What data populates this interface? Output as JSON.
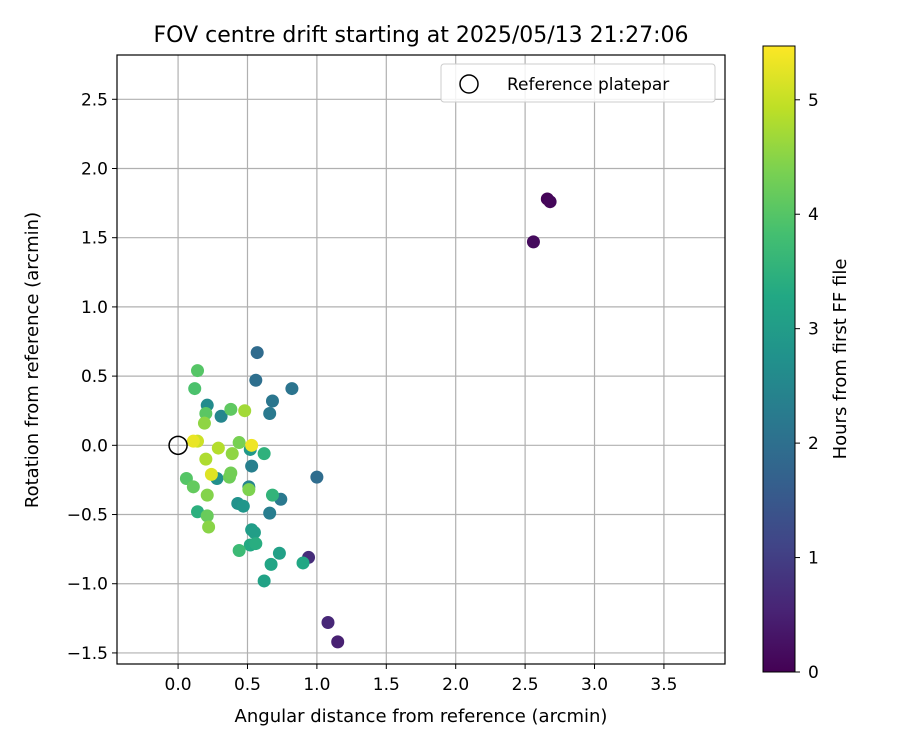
{
  "chart_data": {
    "type": "scatter",
    "title": "FOV centre drift starting at 2025/05/13 21:27:06",
    "xlabel": "Angular distance from reference (arcmin)",
    "ylabel": "Rotation from reference (arcmin)",
    "xlim": [
      -0.44,
      3.94
    ],
    "ylim": [
      -1.58,
      2.82
    ],
    "xticks": [
      0.0,
      0.5,
      1.0,
      1.5,
      2.0,
      2.5,
      3.0,
      3.5
    ],
    "xtick_labels": [
      "0.0",
      "0.5",
      "1.0",
      "1.5",
      "2.0",
      "2.5",
      "3.0",
      "3.5"
    ],
    "yticks": [
      -1.5,
      -1.0,
      -0.5,
      0.0,
      0.5,
      1.0,
      1.5,
      2.0,
      2.5
    ],
    "ytick_labels": [
      "−1.5",
      "−1.0",
      "−0.5",
      "0.0",
      "0.5",
      "1.0",
      "1.5",
      "2.0",
      "2.5"
    ],
    "grid": true,
    "legend": {
      "position": "top-right",
      "entries": [
        {
          "label": "Reference platepar",
          "marker": "open-circle"
        }
      ]
    },
    "reference_point": {
      "x": 0.0,
      "y": 0.0
    },
    "colorbar": {
      "label": "Hours from first FF file",
      "colormap": "viridis",
      "range": [
        0,
        5.47
      ],
      "ticks": [
        0,
        1,
        2,
        3,
        4,
        5
      ],
      "tick_labels": [
        "0",
        "1",
        "2",
        "3",
        "4",
        "5"
      ]
    },
    "points": [
      {
        "x": 2.66,
        "y": 1.78,
        "c": 0.05
      },
      {
        "x": 2.68,
        "y": 1.76,
        "c": 0.1
      },
      {
        "x": 2.56,
        "y": 1.47,
        "c": 0.15
      },
      {
        "x": 1.15,
        "y": -1.42,
        "c": 0.5
      },
      {
        "x": 1.08,
        "y": -1.28,
        "c": 0.6
      },
      {
        "x": 0.94,
        "y": -0.81,
        "c": 0.7
      },
      {
        "x": 0.57,
        "y": 0.67,
        "c": 1.9
      },
      {
        "x": 1.0,
        "y": -0.23,
        "c": 1.95
      },
      {
        "x": 0.56,
        "y": 0.47,
        "c": 2.0
      },
      {
        "x": 0.82,
        "y": 0.41,
        "c": 2.1
      },
      {
        "x": 0.68,
        "y": 0.32,
        "c": 2.15
      },
      {
        "x": 0.66,
        "y": 0.23,
        "c": 2.2
      },
      {
        "x": 0.74,
        "y": -0.39,
        "c": 2.2
      },
      {
        "x": 0.66,
        "y": -0.49,
        "c": 2.3
      },
      {
        "x": 0.53,
        "y": -0.15,
        "c": 2.35
      },
      {
        "x": 0.51,
        "y": -0.3,
        "c": 2.45
      },
      {
        "x": 0.31,
        "y": 0.21,
        "c": 2.5
      },
      {
        "x": 0.21,
        "y": 0.29,
        "c": 2.6
      },
      {
        "x": 0.28,
        "y": -0.24,
        "c": 2.7
      },
      {
        "x": 0.43,
        "y": -0.42,
        "c": 2.75
      },
      {
        "x": 0.47,
        "y": -0.44,
        "c": 2.85
      },
      {
        "x": 0.52,
        "y": -0.03,
        "c": 2.9
      },
      {
        "x": 0.53,
        "y": -0.61,
        "c": 3.0
      },
      {
        "x": 0.55,
        "y": -0.63,
        "c": 3.05
      },
      {
        "x": 0.73,
        "y": -0.78,
        "c": 3.1
      },
      {
        "x": 0.62,
        "y": -0.98,
        "c": 3.15
      },
      {
        "x": 0.67,
        "y": -0.86,
        "c": 3.2
      },
      {
        "x": 0.9,
        "y": -0.85,
        "c": 3.25
      },
      {
        "x": 0.52,
        "y": -0.72,
        "c": 3.3
      },
      {
        "x": 0.56,
        "y": -0.71,
        "c": 3.4
      },
      {
        "x": 0.14,
        "y": -0.48,
        "c": 3.45
      },
      {
        "x": 0.62,
        "y": -0.06,
        "c": 3.5
      },
      {
        "x": 0.68,
        "y": -0.36,
        "c": 3.55
      },
      {
        "x": 0.44,
        "y": -0.76,
        "c": 3.7
      },
      {
        "x": 0.12,
        "y": 0.41,
        "c": 3.9
      },
      {
        "x": 0.14,
        "y": 0.54,
        "c": 4.0
      },
      {
        "x": 0.06,
        "y": -0.24,
        "c": 4.0
      },
      {
        "x": 0.2,
        "y": 0.23,
        "c": 4.05
      },
      {
        "x": 0.38,
        "y": 0.26,
        "c": 4.1
      },
      {
        "x": 0.11,
        "y": -0.3,
        "c": 4.15
      },
      {
        "x": 0.21,
        "y": -0.51,
        "c": 4.2
      },
      {
        "x": 0.37,
        "y": -0.23,
        "c": 4.25
      },
      {
        "x": 0.38,
        "y": -0.2,
        "c": 4.3
      },
      {
        "x": 0.44,
        "y": 0.02,
        "c": 4.35
      },
      {
        "x": 0.51,
        "y": -0.32,
        "c": 4.4
      },
      {
        "x": 0.21,
        "y": -0.36,
        "c": 4.45
      },
      {
        "x": 0.22,
        "y": -0.59,
        "c": 4.5
      },
      {
        "x": 0.39,
        "y": -0.06,
        "c": 4.55
      },
      {
        "x": 0.19,
        "y": 0.16,
        "c": 4.55
      },
      {
        "x": 0.48,
        "y": 0.25,
        "c": 4.7
      },
      {
        "x": 0.2,
        "y": -0.1,
        "c": 4.8
      },
      {
        "x": 0.29,
        "y": -0.02,
        "c": 4.85
      },
      {
        "x": 0.14,
        "y": 0.03,
        "c": 5.05
      },
      {
        "x": 0.24,
        "y": -0.21,
        "c": 5.2
      },
      {
        "x": 0.11,
        "y": 0.03,
        "c": 5.3
      },
      {
        "x": 0.53,
        "y": 0.0,
        "c": 5.35
      }
    ]
  }
}
